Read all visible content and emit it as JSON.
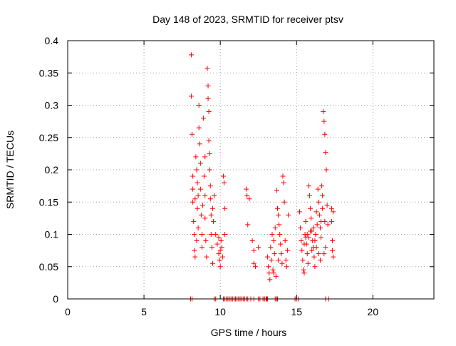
{
  "chart_data": {
    "type": "scatter",
    "title": "Day 148 of 2023, SRMTID for receiver ptsv",
    "xlabel": "GPS time / hours",
    "ylabel": "SRMTID / TECUs",
    "xlim": [
      0,
      24
    ],
    "ylim": [
      0,
      0.4
    ],
    "grid": true,
    "marker": "+",
    "color": "#ff0000",
    "x_ticks": [
      0,
      5,
      10,
      15,
      20
    ],
    "x_tick_labels": [
      "0",
      "5",
      "10",
      "15",
      "20"
    ],
    "y_ticks": [
      0,
      0.05,
      0.1,
      0.15,
      0.2,
      0.25,
      0.3,
      0.35,
      0.4
    ],
    "y_tick_labels": [
      "0",
      "0.05",
      "0.1",
      "0.15",
      "0.2",
      "0.25",
      "0.3",
      "0.35",
      "0.4"
    ],
    "points": [
      [
        8.1,
        0.378
      ],
      [
        8.1,
        0.314
      ],
      [
        8.15,
        0.255
      ],
      [
        8.2,
        0.19
      ],
      [
        8.2,
        0.15
      ],
      [
        8.25,
        0.12
      ],
      [
        8.3,
        0.1
      ],
      [
        8.3,
        0.075
      ],
      [
        8.35,
        0.065
      ],
      [
        8.2,
        0.17
      ],
      [
        8.4,
        0.22
      ],
      [
        8.45,
        0.2
      ],
      [
        8.5,
        0.18
      ],
      [
        8.5,
        0.14
      ],
      [
        8.55,
        0.11
      ],
      [
        8.6,
        0.3
      ],
      [
        8.6,
        0.265
      ],
      [
        8.65,
        0.24
      ],
      [
        8.7,
        0.21
      ],
      [
        8.7,
        0.17
      ],
      [
        8.75,
        0.13
      ],
      [
        8.8,
        0.1
      ],
      [
        8.8,
        0.08
      ],
      [
        8.9,
        0.28
      ],
      [
        8.95,
        0.19
      ],
      [
        9.0,
        0.16
      ],
      [
        9.0,
        0.125
      ],
      [
        9.05,
        0.09
      ],
      [
        9.1,
        0.065
      ],
      [
        9.15,
        0.357
      ],
      [
        9.2,
        0.33
      ],
      [
        9.2,
        0.31
      ],
      [
        9.25,
        0.29
      ],
      [
        9.25,
        0.245
      ],
      [
        9.3,
        0.225
      ],
      [
        9.3,
        0.2
      ],
      [
        9.35,
        0.175
      ],
      [
        9.35,
        0.155
      ],
      [
        9.4,
        0.13
      ],
      [
        9.4,
        0.1
      ],
      [
        9.45,
        0.08
      ],
      [
        9.5,
        0.055
      ],
      [
        9.5,
        0.14
      ],
      [
        9.55,
        0.12
      ],
      [
        9.6,
        0.16
      ],
      [
        8.35,
        0.155
      ],
      [
        8.45,
        0.09
      ],
      [
        8.55,
        0.16
      ],
      [
        8.85,
        0.145
      ],
      [
        9.0,
        0.22
      ],
      [
        9.7,
        0.1
      ],
      [
        9.8,
        0.085
      ],
      [
        9.9,
        0.07
      ],
      [
        9.95,
        0.06
      ],
      [
        10.0,
        0.05
      ],
      [
        10.05,
        0.09
      ],
      [
        10.1,
        0.08
      ],
      [
        10.15,
        0.065
      ],
      [
        9.9,
        0.095
      ],
      [
        10.0,
        0.075
      ],
      [
        10.2,
        0.19
      ],
      [
        10.25,
        0.18
      ],
      [
        10.3,
        0.14
      ],
      [
        10.3,
        0.1
      ],
      [
        11.7,
        0.17
      ],
      [
        11.75,
        0.16
      ],
      [
        11.8,
        0.115
      ],
      [
        11.9,
        0.155
      ],
      [
        12.1,
        0.09
      ],
      [
        12.2,
        0.075
      ],
      [
        12.2,
        0.055
      ],
      [
        12.3,
        0.05
      ],
      [
        12.5,
        0.08
      ],
      [
        13.1,
        0.065
      ],
      [
        13.15,
        0.05
      ],
      [
        13.2,
        0.04
      ],
      [
        13.25,
        0.03
      ],
      [
        13.3,
        0.08
      ],
      [
        13.35,
        0.06
      ],
      [
        13.4,
        0.1
      ],
      [
        13.45,
        0.045
      ],
      [
        13.5,
        0.09
      ],
      [
        13.55,
        0.07
      ],
      [
        13.6,
        0.11
      ],
      [
        13.65,
        0.035
      ],
      [
        13.7,
        0.168
      ],
      [
        13.75,
        0.14
      ],
      [
        13.8,
        0.13
      ],
      [
        13.85,
        0.115
      ],
      [
        13.9,
        0.1
      ],
      [
        13.95,
        0.085
      ],
      [
        14.0,
        0.07
      ],
      [
        14.05,
        0.055
      ],
      [
        14.1,
        0.19
      ],
      [
        14.15,
        0.18
      ],
      [
        14.2,
        0.15
      ],
      [
        14.25,
        0.09
      ],
      [
        14.3,
        0.06
      ],
      [
        14.35,
        0.05
      ],
      [
        14.4,
        0.075
      ],
      [
        14.45,
        0.13
      ],
      [
        13.5,
        0.04
      ],
      [
        13.8,
        0.06
      ],
      [
        15.2,
        0.135
      ],
      [
        15.25,
        0.11
      ],
      [
        15.3,
        0.09
      ],
      [
        15.35,
        0.075
      ],
      [
        15.4,
        0.06
      ],
      [
        15.45,
        0.045
      ],
      [
        15.5,
        0.04
      ],
      [
        15.55,
        0.1
      ],
      [
        15.6,
        0.12
      ],
      [
        15.65,
        0.085
      ],
      [
        15.7,
        0.07
      ],
      [
        15.75,
        0.055
      ],
      [
        15.8,
        0.175
      ],
      [
        15.85,
        0.16
      ],
      [
        15.9,
        0.14
      ],
      [
        15.95,
        0.125
      ],
      [
        16.0,
        0.105
      ],
      [
        16.05,
        0.09
      ],
      [
        16.1,
        0.08
      ],
      [
        16.15,
        0.065
      ],
      [
        16.2,
        0.05
      ],
      [
        16.25,
        0.1
      ],
      [
        16.3,
        0.135
      ],
      [
        16.35,
        0.115
      ],
      [
        16.4,
        0.17
      ],
      [
        16.45,
        0.15
      ],
      [
        16.5,
        0.13
      ],
      [
        16.55,
        0.11
      ],
      [
        16.6,
        0.095
      ],
      [
        16.65,
        0.175
      ],
      [
        16.7,
        0.16
      ],
      [
        16.75,
        0.29
      ],
      [
        16.8,
        0.275
      ],
      [
        16.85,
        0.255
      ],
      [
        16.9,
        0.227
      ],
      [
        16.95,
        0.2
      ],
      [
        17.0,
        0.145
      ],
      [
        17.05,
        0.115
      ],
      [
        16.9,
        0.08
      ],
      [
        16.8,
        0.07
      ],
      [
        17.3,
        0.14
      ],
      [
        17.3,
        0.12
      ],
      [
        17.35,
        0.09
      ],
      [
        17.35,
        0.075
      ],
      [
        17.4,
        0.065
      ],
      [
        17.4,
        0.135
      ],
      [
        15.6,
        0.095
      ],
      [
        15.7,
        0.1
      ],
      [
        15.9,
        0.105
      ],
      [
        16.0,
        0.075
      ],
      [
        16.1,
        0.11
      ],
      [
        16.2,
        0.09
      ],
      [
        16.3,
        0.08
      ],
      [
        16.45,
        0.07
      ],
      [
        16.55,
        0.06
      ],
      [
        16.6,
        0.12
      ],
      [
        15.5,
        0.085
      ],
      [
        15.8,
        0.095
      ],
      [
        16.7,
        0.14
      ],
      [
        16.85,
        0.12
      ]
    ],
    "zero_points": [
      8.05,
      8.15,
      9.6,
      9.7,
      10.2,
      10.3,
      10.4,
      10.5,
      10.6,
      10.7,
      10.8,
      10.9,
      11.0,
      11.1,
      11.2,
      11.3,
      11.4,
      11.5,
      11.6,
      11.7,
      11.8,
      12.0,
      12.2,
      12.5,
      12.6,
      12.8,
      12.9,
      13.0,
      13.05,
      13.1,
      13.6,
      13.7,
      13.75,
      14.9,
      15.0,
      15.1,
      16.9,
      17.1
    ]
  }
}
